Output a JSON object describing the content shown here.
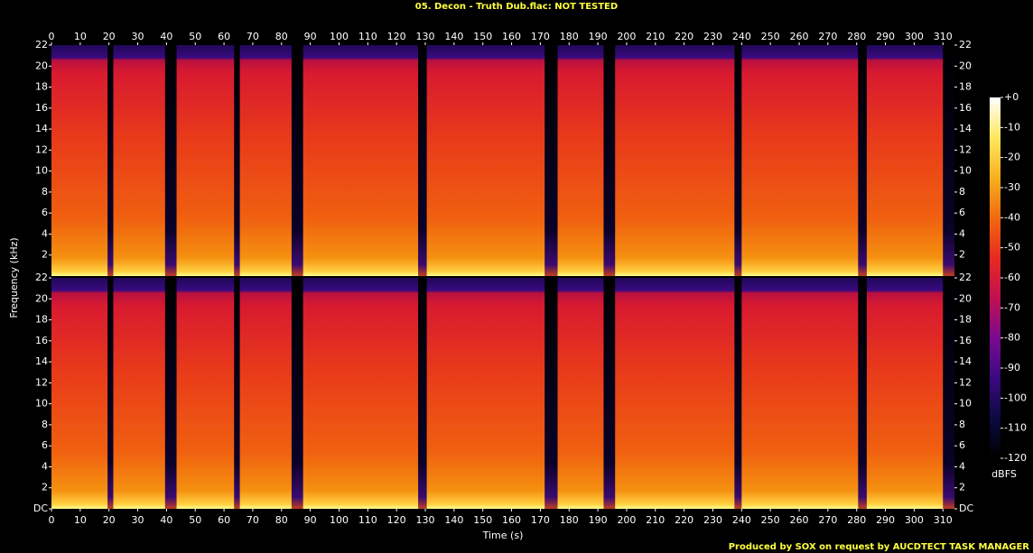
{
  "chart_data": {
    "type": "spectrogram",
    "title": "05. Decon - Truth Dub.flac: NOT TESTED",
    "x_label": "Time (s)",
    "y_label": "Frequency (kHz)",
    "xlim": [
      0,
      314
    ],
    "xticks": [
      0,
      10,
      20,
      30,
      40,
      50,
      60,
      70,
      80,
      90,
      100,
      110,
      120,
      130,
      140,
      150,
      160,
      170,
      180,
      190,
      200,
      210,
      220,
      230,
      240,
      250,
      260,
      270,
      280,
      290,
      300,
      310
    ],
    "ylim": [
      0,
      22
    ],
    "panels": [
      {
        "yticks": [
          2,
          4,
          6,
          8,
          10,
          12,
          14,
          16,
          18,
          20,
          22
        ]
      },
      {
        "yticks": [
          {
            "value": 0,
            "label": "DC"
          },
          2,
          4,
          6,
          8,
          10,
          12,
          14,
          16,
          18,
          20,
          22
        ]
      }
    ],
    "silences": [
      [
        19.5,
        21.5
      ],
      [
        39.5,
        43.5
      ],
      [
        63.5,
        65.5
      ],
      [
        83.5,
        87.5
      ],
      [
        127.5,
        130.5
      ],
      [
        171.5,
        176
      ],
      [
        192,
        196
      ],
      [
        237.5,
        240
      ],
      [
        280.5,
        283.5
      ],
      [
        310,
        314
      ]
    ],
    "colorbar": {
      "label": "dBFS",
      "lim": [
        -120,
        0
      ],
      "ticks": [
        {
          "value": 0,
          "label": "+0"
        },
        -10,
        -20,
        -30,
        -40,
        -50,
        -60,
        -70,
        -80,
        -90,
        -100,
        -110,
        -120
      ],
      "colors": [
        "#000000",
        "#0a0a40",
        "#3a0a80",
        "#7a0a90",
        "#c01050",
        "#e82a20",
        "#f06a10",
        "#f8b020",
        "#ffe860",
        "#ffffff"
      ]
    }
  },
  "footer": "Produced by SOX on request by AUCDTECT TASK MANAGER"
}
